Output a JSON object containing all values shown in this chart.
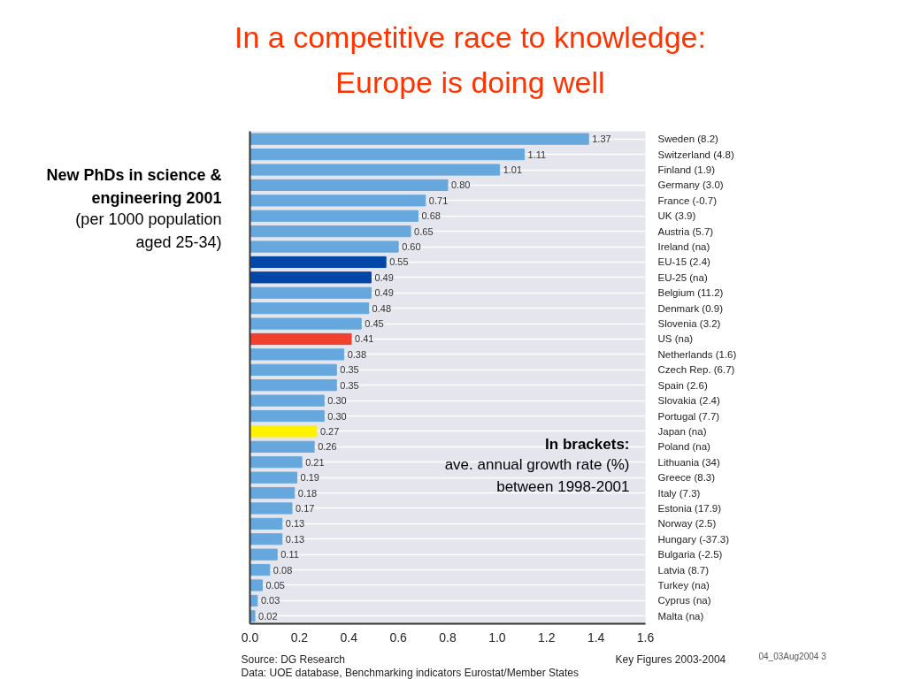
{
  "chart_data": {
    "type": "bar",
    "orientation": "horizontal",
    "title": "In a competitive race to knowledge:\nEurope is doing well",
    "subtitle": "New PhDs in science &\nengineering 2001",
    "annotations": [
      "(per 1000 population\naged 25-34)",
      "In brackets:",
      "ave. annual growth rate (%)\nbetween 1998-2001",
      "Source:  DG Research",
      "Data:     UOE database, Benchmarking indicators Eurostat/Member States",
      "Key Figures 2003-2004",
      "04_03Aug2004  3"
    ],
    "categories": [
      "Sweden (8.2)",
      "Switzerland (4.8)",
      "Finland (1.9)",
      "Germany (3.0)",
      "France (-0.7)",
      "UK (3.9)",
      "Austria (5.7)",
      "Ireland (na)",
      "EU-15 (2.4)",
      "EU-25 (na)",
      "Belgium (11.2)",
      "Denmark (0.9)",
      "Slovenia (3.2)",
      "US (na)",
      "Netherlands (1.6)",
      "Czech Rep. (6.7)",
      "Spain (2.6)",
      "Slovakia (2.4)",
      "Portugal (7.7)",
      "Japan (na)",
      "Poland (na)",
      "Lithuania (34)",
      "Greece (8.3)",
      "Italy (7.3)",
      "Estonia (17.9)",
      "Norway (2.5)",
      "Hungary (-37.3)",
      "Bulgaria (-2.5)",
      "Latvia (8.7)",
      "Turkey (na)",
      "Cyprus (na)",
      "Malta (na)"
    ],
    "values": [
      1.37,
      1.11,
      1.01,
      0.8,
      0.71,
      0.68,
      0.65,
      0.6,
      0.55,
      0.49,
      0.49,
      0.48,
      0.45,
      0.41,
      0.38,
      0.35,
      0.35,
      0.3,
      0.3,
      0.27,
      0.26,
      0.21,
      0.19,
      0.18,
      0.17,
      0.13,
      0.13,
      0.11,
      0.08,
      0.05,
      0.03,
      0.02
    ],
    "value_labels": [
      "1.37",
      "1.11",
      "1.01",
      "0.80",
      "0.71",
      "0.68",
      "0.65",
      "0.60",
      "0.55",
      "0.49",
      "0.49",
      "0.48",
      "0.45",
      "0.41",
      "0.38",
      "0.35",
      "0.35",
      "0.30",
      "0.30",
      "0.27",
      "0.26",
      "0.21",
      "0.19",
      "0.18",
      "0.17",
      "0.13",
      "0.13",
      "0.11",
      "0.08",
      "0.05",
      "0.03",
      "0.02"
    ],
    "colors": [
      "#66a8de",
      "#66a8de",
      "#66a8de",
      "#66a8de",
      "#66a8de",
      "#66a8de",
      "#66a8de",
      "#66a8de",
      "#0047a8",
      "#0047a8",
      "#66a8de",
      "#66a8de",
      "#66a8de",
      "#f0402e",
      "#66a8de",
      "#66a8de",
      "#66a8de",
      "#66a8de",
      "#66a8de",
      "#fff200",
      "#66a8de",
      "#66a8de",
      "#66a8de",
      "#66a8de",
      "#66a8de",
      "#66a8de",
      "#66a8de",
      "#66a8de",
      "#66a8de",
      "#66a8de",
      "#66a8de",
      "#66a8de"
    ],
    "xlim": [
      0,
      1.6
    ],
    "xticks": [
      {
        "value": 0,
        "label": "0.0"
      },
      0.2,
      0.4,
      0.6,
      0.8,
      {
        "value": 1,
        "label": "1.0"
      },
      1.2,
      1.4,
      1.6
    ],
    "grid": "y"
  }
}
